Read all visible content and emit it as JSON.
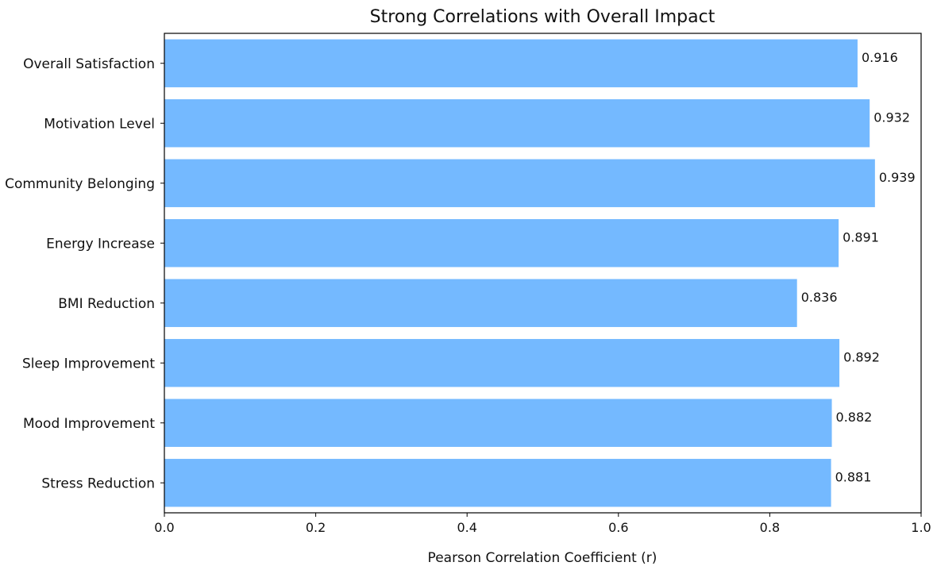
{
  "chart_data": {
    "type": "bar",
    "orientation": "horizontal",
    "title": "Strong Correlations with Overall Impact",
    "xlabel": "Pearson Correlation Coefficient (r)",
    "ylabel": "",
    "categories": [
      "Overall Satisfaction",
      "Motivation Level",
      "Community Belonging",
      "Energy Increase",
      "BMI Reduction",
      "Sleep Improvement",
      "Mood Improvement",
      "Stress Reduction"
    ],
    "values": [
      0.916,
      0.932,
      0.939,
      0.891,
      0.836,
      0.892,
      0.882,
      0.881
    ],
    "value_labels": [
      "0.916",
      "0.932",
      "0.939",
      "0.891",
      "0.836",
      "0.892",
      "0.882",
      "0.881"
    ],
    "xlim": [
      0,
      1
    ],
    "xticks": [
      0,
      0.2,
      0.4,
      0.6,
      0.8,
      1.0
    ],
    "xtick_labels": [
      "0.0",
      "0.2",
      "0.4",
      "0.6",
      "0.8",
      "1.0"
    ],
    "grid": false,
    "legend": "none",
    "bar_color": "#74b9ff"
  }
}
